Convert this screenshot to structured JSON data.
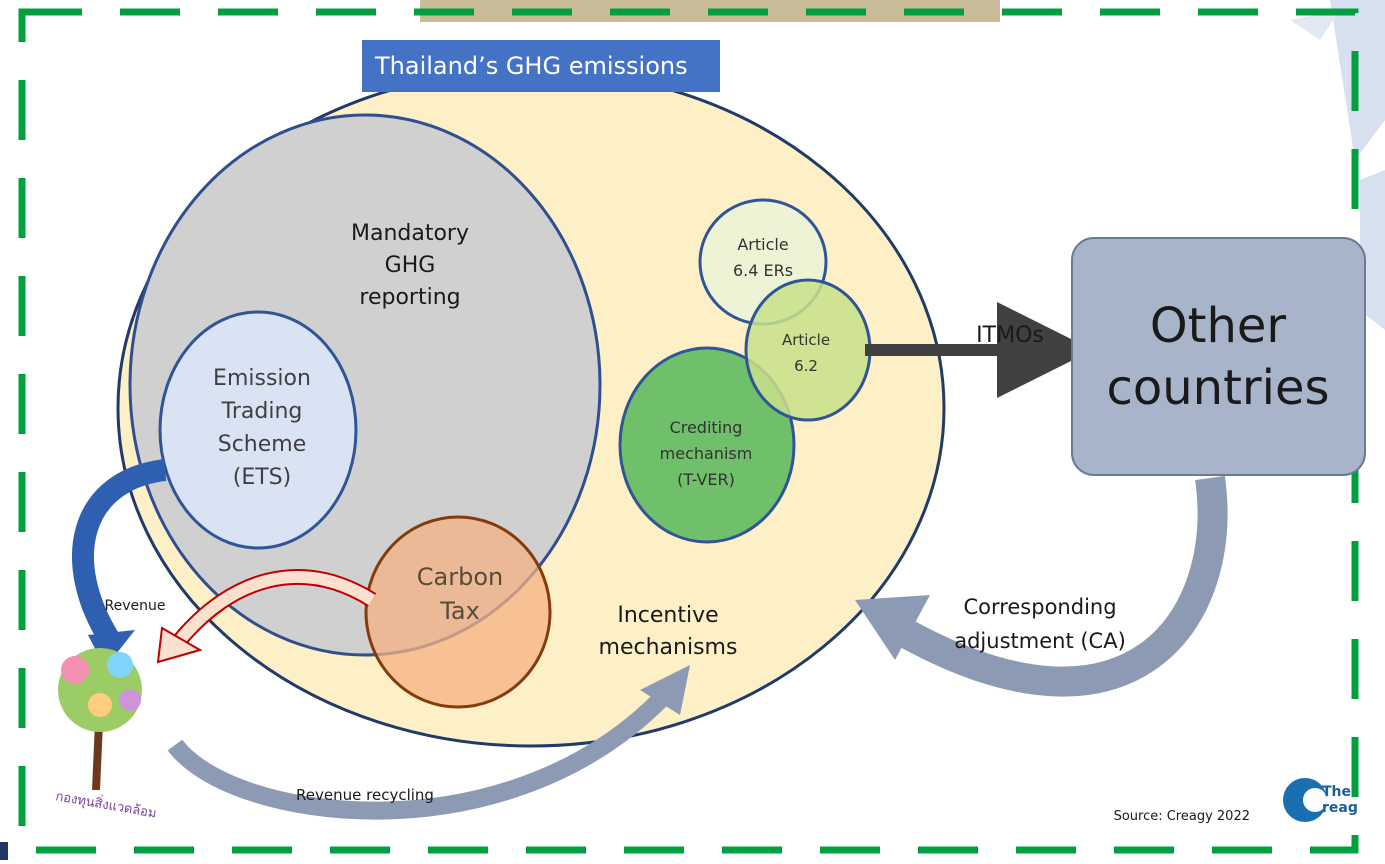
{
  "title": "Thailand’s GHG emissions",
  "nodes": [
    {
      "lines": [
        "Mandatory",
        "GHG",
        "reporting"
      ]
    },
    {
      "lines": [
        "Emission",
        "Trading",
        "Scheme",
        "(ETS)"
      ]
    },
    {
      "lines": [
        "Carbon",
        "Tax"
      ]
    },
    {
      "lines": [
        "Article",
        "6.4 ERs"
      ]
    },
    {
      "lines": [
        "Article",
        "6.2"
      ]
    },
    {
      "lines": [
        "Crediting",
        "mechanism",
        "(T-VER)"
      ]
    },
    {
      "lines": [
        "Other",
        "countries"
      ]
    },
    {
      "lines": [
        "Incentive",
        "mechanisms"
      ]
    }
  ],
  "flows": [
    "ITMOs",
    "Revenue",
    "Revenue recycling"
  ],
  "adjustment": [
    "Corresponding",
    "adjustment (CA)"
  ],
  "fund_label": "กองทุนสิ่งแวดล้อม",
  "source": "Source: Creagy 2022",
  "logo": [
    "The",
    "reag"
  ]
}
